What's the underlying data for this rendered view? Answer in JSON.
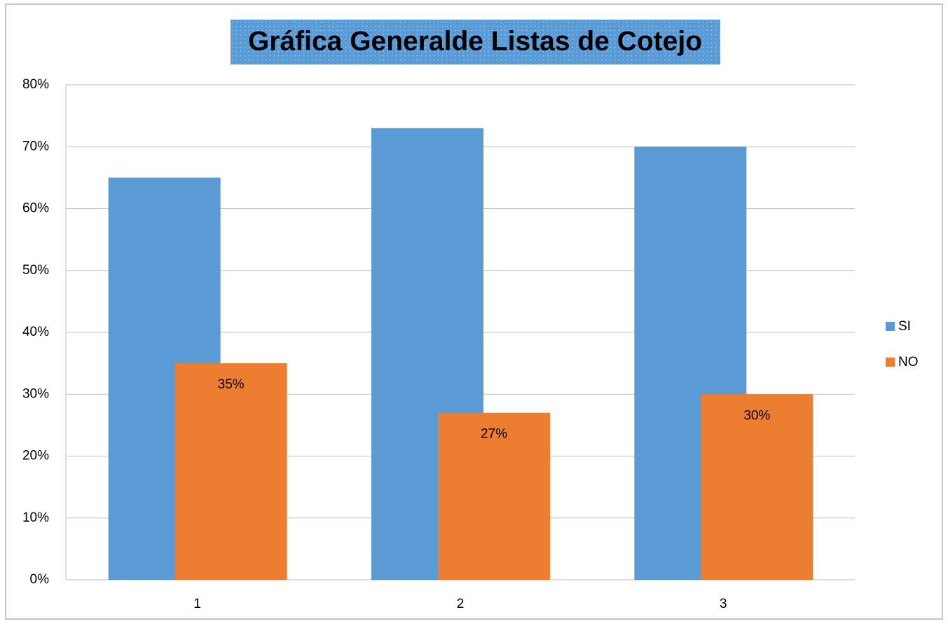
{
  "chart_data": {
    "type": "bar",
    "title": "Gráfica Generalde Listas de Cotejo",
    "categories": [
      "1",
      "2",
      "3"
    ],
    "series": [
      {
        "name": "SI",
        "color": "#5b9bd5",
        "values": [
          65,
          73,
          70
        ]
      },
      {
        "name": "NO",
        "color": "#ed7d31",
        "values": [
          35,
          27,
          30
        ],
        "value_labels": [
          "35%",
          "27%",
          "30%"
        ]
      }
    ],
    "ylim": [
      0,
      80
    ],
    "yticks": [
      {
        "value": 0,
        "label": "0%"
      },
      {
        "value": 10,
        "label": "10%"
      },
      {
        "value": 20,
        "label": "20%"
      },
      {
        "value": 30,
        "label": "30%"
      },
      {
        "value": 40,
        "label": "40%"
      },
      {
        "value": 50,
        "label": "50%"
      },
      {
        "value": 60,
        "label": "60%"
      },
      {
        "value": 70,
        "label": "70%"
      },
      {
        "value": 80,
        "label": "80%"
      }
    ],
    "grid": true,
    "legend": "right"
  }
}
